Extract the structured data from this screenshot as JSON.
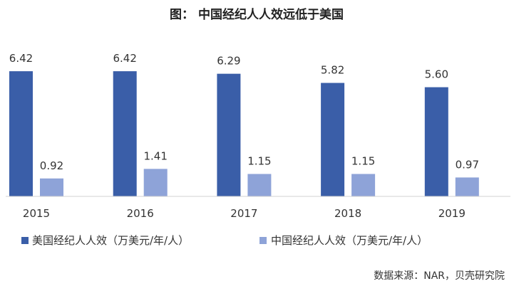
{
  "chart_data": {
    "type": "bar",
    "title": "图：  中国经纪人人效远低于美国",
    "categories": [
      "2015",
      "2016",
      "2017",
      "2018",
      "2019"
    ],
    "series": [
      {
        "name": "美国经纪人人效（万美元/年/人）",
        "values": [
          6.42,
          6.42,
          6.29,
          5.82,
          5.6
        ],
        "labels": [
          "6.42",
          "6.42",
          "6.29",
          "5.82",
          "5.60"
        ],
        "color": "#3a5ea8"
      },
      {
        "name": "中国经纪人人效（万美元/年/人）",
        "values": [
          0.92,
          1.41,
          1.15,
          1.15,
          0.97
        ],
        "labels": [
          "0.92",
          "1.41",
          "1.15",
          "1.15",
          "0.97"
        ],
        "color": "#8ea3d8"
      }
    ],
    "xlabel": "",
    "ylabel": "",
    "ylim": [
      0,
      7.5
    ],
    "grid": false,
    "legend_position": "bottom-left"
  },
  "source": "数据来源：NAR，贝壳研究院"
}
